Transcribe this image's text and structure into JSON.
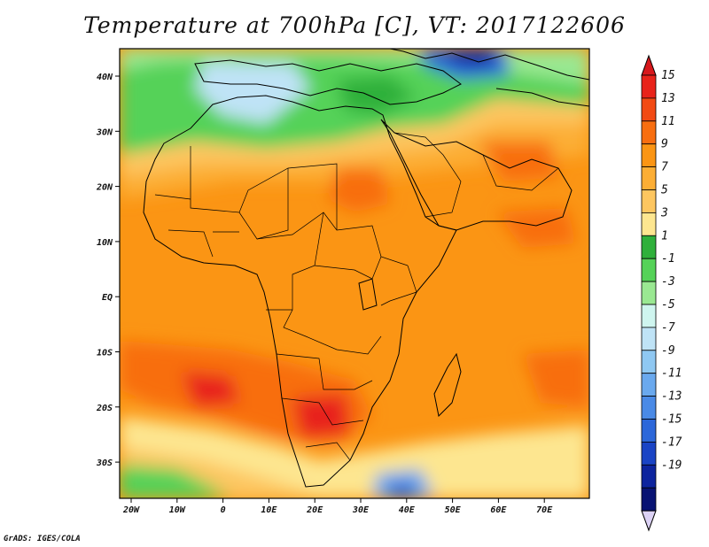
{
  "title": "Temperature at 700hPa [C], VT: 2017122606",
  "credit": "GrADS: IGES/COLA",
  "lon_labels": [
    "20W",
    "10W",
    "0",
    "10E",
    "20E",
    "30E",
    "40E",
    "50E",
    "60E",
    "70E"
  ],
  "lat_labels": [
    "40N",
    "30N",
    "20N",
    "10N",
    "EQ",
    "10S",
    "20S",
    "30S"
  ],
  "colorbar": {
    "labels": [
      "15",
      "13",
      "11",
      "9",
      "7",
      "5",
      "3",
      "1",
      "-1",
      "-3",
      "-5",
      "-7",
      "-9",
      "-11",
      "-13",
      "-15",
      "-17",
      "-19"
    ],
    "colors": [
      "#e8231a",
      "#f24a14",
      "#f86e10",
      "#fb9514",
      "#fcae35",
      "#fdc660",
      "#fde690",
      "#2fb03b",
      "#55d258",
      "#9ae892",
      "#cff5ef",
      "#bfe3f6",
      "#8fc8f2",
      "#6aa9ee",
      "#4a8ae6",
      "#2c67d9",
      "#1a44c5",
      "#0d249e",
      "#081373"
    ],
    "top_arrow": "#d7181c",
    "bottom_arrow": "#dcd2f5"
  }
}
